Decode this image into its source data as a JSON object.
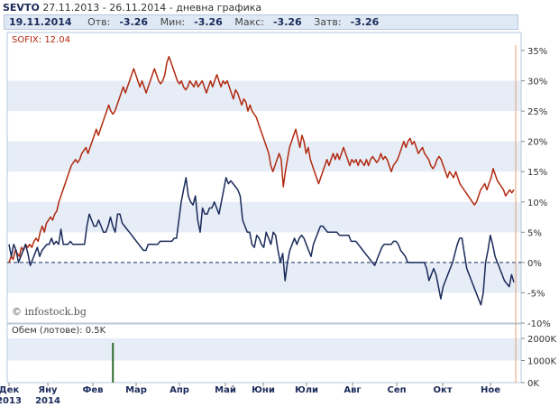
{
  "header": {
    "symbol": "SEVTO",
    "range": "27.11.2013 - 26.11.2014",
    "chart_kind": "- дневна графика"
  },
  "summary": {
    "date": "19.11.2014",
    "open_label": "Отв:",
    "open": "-3.26",
    "min_label": "Мин:",
    "min": "-3.26",
    "max_label": "Макс:",
    "max": "-3.26",
    "close_label": "Затв:",
    "close": "-3.26"
  },
  "watermark": "© infostock.bg",
  "colors": {
    "sofix": "#b22a10",
    "stock": "#1a2a5a",
    "volume": "#2f6b2f",
    "band": "#e6edf7"
  },
  "chart_data": [
    {
      "type": "line",
      "legend": "SOFIX: 12.04",
      "y_unit": "%",
      "ylim": [
        -10,
        35
      ],
      "y_ticks": [
        "35%",
        "30%",
        "25%",
        "20%",
        "15%",
        "10%",
        "5%",
        "0%",
        "-5%",
        "-10%"
      ],
      "x_ticks": [
        "Дек",
        "Яну",
        "Фев",
        "Мар",
        "Апр",
        "Май",
        "Юни",
        "Юли",
        "Авг",
        "Сеп",
        "Окт",
        "Ное"
      ],
      "x_year_labels": [
        "2013",
        "2014"
      ],
      "grid": true,
      "series": [
        {
          "name": "SOFIX",
          "values": [
            0,
            1,
            0.5,
            2,
            1.5,
            1,
            2.5,
            2,
            3,
            2.5,
            3,
            2.5,
            3.5,
            4,
            3.5,
            5,
            6,
            5,
            6.5,
            7,
            7.5,
            7,
            8,
            8.5,
            10,
            11,
            12,
            13,
            14,
            15,
            16,
            16.5,
            17,
            16.5,
            17,
            18,
            18.5,
            19,
            18,
            19,
            20,
            21,
            22,
            21,
            22,
            23,
            24,
            25,
            26,
            25,
            24.5,
            25,
            26,
            27,
            28,
            29,
            28,
            29,
            30,
            31,
            32,
            31,
            30,
            29,
            30,
            29,
            28,
            29,
            30,
            31,
            32,
            31,
            30,
            29.5,
            30,
            31,
            33,
            34,
            33,
            32,
            31,
            30,
            29.5,
            30,
            29,
            28.5,
            29,
            30,
            29.5,
            29,
            30,
            29,
            29.5,
            30,
            29,
            28,
            29,
            30,
            29,
            30,
            31,
            30,
            29,
            30,
            29.5,
            30,
            29,
            28,
            27,
            28.5,
            28,
            27,
            26,
            27,
            26.5,
            25,
            26,
            25,
            24.5,
            24,
            23,
            22,
            21,
            20,
            19,
            18,
            16,
            15,
            16,
            17,
            18,
            17,
            12.5,
            15,
            17,
            19,
            20,
            21,
            22,
            20.5,
            19,
            21,
            20,
            18,
            19,
            17,
            16,
            15,
            14,
            13,
            14,
            15,
            16,
            17,
            16,
            17,
            18,
            17,
            18,
            17,
            18,
            19,
            18,
            17,
            16,
            17,
            16.5,
            17,
            16,
            17,
            16.5,
            16,
            17,
            16,
            17,
            17.5,
            17,
            16.5,
            17,
            18,
            17,
            17.5,
            17,
            16,
            15,
            16,
            16.5,
            17,
            18,
            19,
            20,
            19,
            20,
            20.5,
            19.5,
            20,
            19,
            18,
            18.5,
            19,
            18,
            17.5,
            17,
            16,
            15.5,
            16,
            17,
            17.5,
            17,
            16,
            15,
            14,
            15,
            14.5,
            14,
            15,
            14,
            13,
            12.5,
            12,
            11.5,
            11,
            10.5,
            10,
            9.5,
            10,
            11,
            12,
            12.5,
            13,
            12,
            13,
            14,
            15.5,
            14.5,
            13.5,
            13,
            12.5,
            12,
            11,
            11.5,
            12,
            11.5,
            12.04
          ]
        },
        {
          "name": "SEVTO",
          "values": [
            3,
            1,
            3,
            2,
            0,
            1,
            2,
            3,
            1.5,
            -0.5,
            0.5,
            1.5,
            2.5,
            1,
            2,
            2.5,
            3,
            3,
            4,
            3,
            3.5,
            3,
            5.5,
            3,
            3,
            3,
            3.5,
            3,
            3,
            3,
            3,
            3,
            3,
            6,
            8,
            7,
            6,
            6,
            7,
            6,
            5,
            5,
            6,
            7.5,
            6,
            5,
            8,
            8,
            6.5,
            6,
            5.5,
            5,
            4.5,
            4,
            3.5,
            3,
            2.5,
            2,
            2,
            3,
            3,
            3,
            3,
            3,
            3.5,
            3.5,
            3.5,
            3.5,
            3.5,
            3.5,
            4,
            4,
            7,
            10,
            12,
            14,
            11,
            10,
            9.5,
            11,
            7,
            5,
            9,
            8,
            8,
            9,
            9,
            10,
            9,
            8,
            10,
            12,
            14,
            13,
            13.5,
            13,
            12.5,
            12,
            11,
            7,
            6,
            5,
            5,
            3,
            2.5,
            4.5,
            4,
            3,
            2.5,
            5,
            4,
            3,
            5,
            4.5,
            2,
            0,
            1.5,
            -3,
            0,
            2,
            3,
            4,
            3,
            4,
            4.5,
            4,
            3,
            2,
            1,
            3,
            4,
            5,
            6,
            6,
            5.5,
            5,
            5,
            5,
            5,
            5,
            4.5,
            4.5,
            4.5,
            4.5,
            4.5,
            3.5,
            3.5,
            3.5,
            3,
            2.5,
            2,
            1.5,
            1,
            0.5,
            0,
            -0.5,
            0.5,
            1.5,
            2.5,
            3,
            3,
            3,
            3,
            3.5,
            3.5,
            3,
            2,
            1.5,
            1,
            0,
            0,
            0,
            0,
            0,
            0,
            0,
            0,
            -1,
            -3,
            -2,
            -1,
            -2,
            -4,
            -6,
            -4,
            -3,
            -2,
            -1,
            0,
            1.5,
            3,
            4,
            4,
            1.5,
            -1,
            -2,
            -3,
            -4,
            -5,
            -6,
            -7,
            -5,
            0,
            2,
            4.5,
            3,
            1,
            0,
            -1,
            -2,
            -3,
            -3.5,
            -4,
            -2,
            -3.26
          ]
        }
      ]
    },
    {
      "type": "bar",
      "legend": "Обем (лотове): 0.5K",
      "ylim": [
        0,
        2000
      ],
      "y_ticks": [
        "2000K",
        "1000K",
        "0K"
      ],
      "bars": [
        {
          "index": 50,
          "value": 1800
        }
      ]
    }
  ]
}
